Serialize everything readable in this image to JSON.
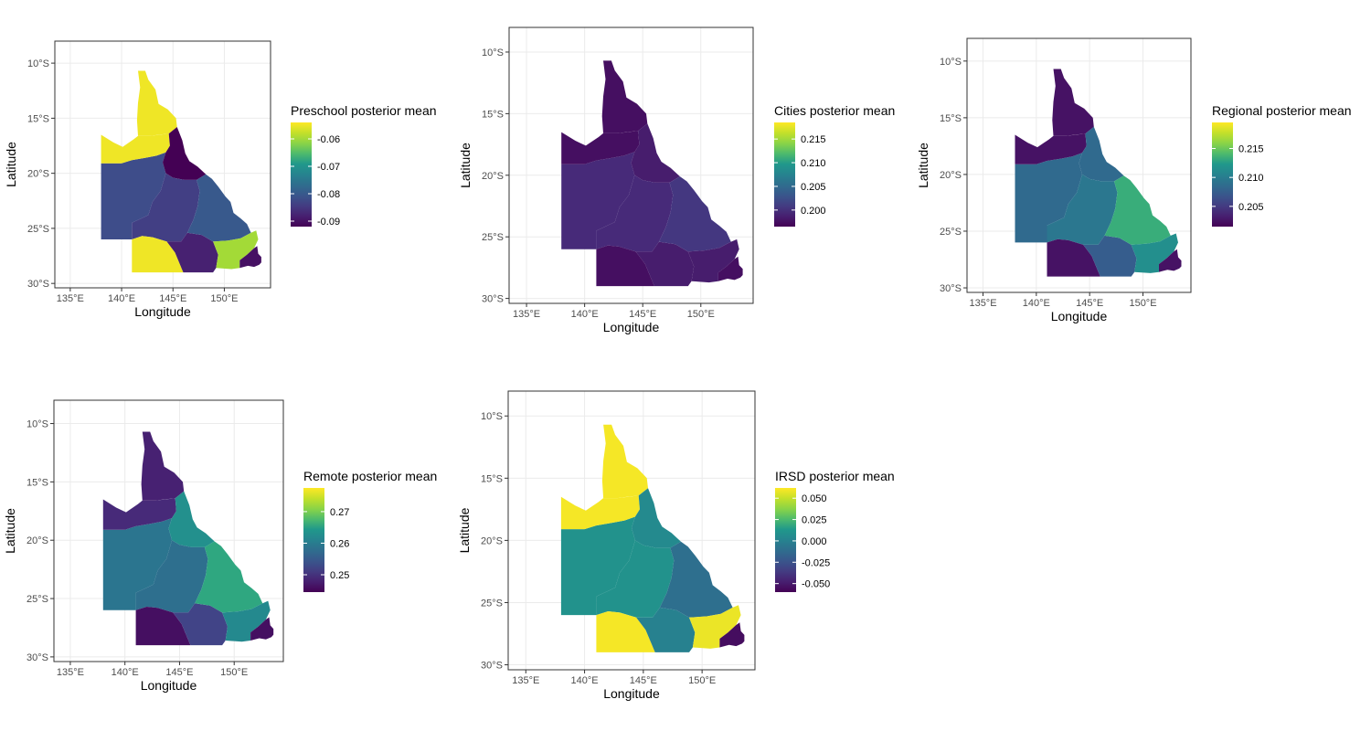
{
  "chart_data": [
    {
      "type": "choropleth",
      "id": "preschool",
      "legend_title": "Preschool posterior mean",
      "legend_breaks": [
        -0.06,
        -0.07,
        -0.08,
        -0.09
      ],
      "legend_labels": [
        "-0.06",
        "-0.07",
        "-0.08",
        "-0.09"
      ],
      "legend_range": [
        -0.092,
        -0.054
      ],
      "xlabel": "Longitude",
      "ylabel": "Latitude",
      "x_ticks": [
        "135°E",
        "140°E",
        "145°E",
        "150°E"
      ],
      "y_ticks": [
        "10°S",
        "15°S",
        "20°S",
        "25°S",
        "30°S"
      ],
      "regions": {
        "cape": -0.055,
        "gulf": -0.055,
        "central_north": -0.092,
        "west": -0.082,
        "central": -0.084,
        "southwest": -0.055,
        "south": -0.088,
        "east_coast": -0.08,
        "southeast": -0.06,
        "brisbane": -0.09
      }
    },
    {
      "type": "choropleth",
      "id": "cities",
      "legend_title": "Cities posterior mean",
      "legend_breaks": [
        0.215,
        0.21,
        0.205,
        0.2
      ],
      "legend_labels": [
        "0.215",
        "0.210",
        "0.205",
        "0.200"
      ],
      "legend_range": [
        0.1965,
        0.2185
      ],
      "xlabel": "Longitude",
      "ylabel": "Latitude",
      "x_ticks": [
        "135°E",
        "140°E",
        "145°E",
        "150°E"
      ],
      "y_ticks": [
        "10°S",
        "15°S",
        "20°S",
        "25°S",
        "30°S"
      ],
      "regions": {
        "cape": 0.1975,
        "gulf": 0.1975,
        "central_north": 0.1985,
        "west": 0.1995,
        "central": 0.1995,
        "southwest": 0.1975,
        "south": 0.1985,
        "east_coast": 0.2005,
        "southeast": 0.1985,
        "brisbane": 0.1975
      }
    },
    {
      "type": "choropleth",
      "id": "regional",
      "legend_title": "Regional posterior mean",
      "legend_breaks": [
        0.215,
        0.21,
        0.205
      ],
      "legend_labels": [
        "0.215",
        "0.210",
        "0.205"
      ],
      "legend_range": [
        0.2015,
        0.2195
      ],
      "xlabel": "Longitude",
      "ylabel": "Latitude",
      "x_ticks": [
        "135°E",
        "140°E",
        "145°E",
        "150°E"
      ],
      "y_ticks": [
        "10°S",
        "15°S",
        "20°S",
        "25°S",
        "30°S"
      ],
      "regions": {
        "cape": 0.2025,
        "gulf": 0.2025,
        "central_north": 0.2085,
        "west": 0.2085,
        "central": 0.2095,
        "southwest": 0.2025,
        "south": 0.2075,
        "east_coast": 0.2135,
        "southeast": 0.2115,
        "brisbane": 0.2025
      }
    },
    {
      "type": "choropleth",
      "id": "remote",
      "legend_title": "Remote posterior mean",
      "legend_breaks": [
        0.27,
        0.26,
        0.25
      ],
      "legend_labels": [
        "0.27",
        "0.26",
        "0.25"
      ],
      "legend_range": [
        0.2445,
        0.2775
      ],
      "xlabel": "Longitude",
      "ylabel": "Latitude",
      "x_ticks": [
        "135°E",
        "140°E",
        "145°E",
        "150°E"
      ],
      "y_ticks": [
        "10°S",
        "15°S",
        "20°S",
        "25°S",
        "30°S"
      ],
      "regions": {
        "cape": 0.248,
        "gulf": 0.249,
        "central_north": 0.263,
        "west": 0.259,
        "central": 0.258,
        "southwest": 0.246,
        "south": 0.252,
        "east_coast": 0.266,
        "southeast": 0.262,
        "brisbane": 0.246
      }
    },
    {
      "type": "choropleth",
      "id": "irsd",
      "legend_title": "IRSD posterior mean",
      "legend_breaks": [
        0.05,
        0.025,
        0.0,
        -0.025,
        -0.05
      ],
      "legend_labels": [
        "0.050",
        "0.025",
        "0.000",
        "-0.025",
        "-0.050"
      ],
      "legend_range": [
        -0.06,
        0.062
      ],
      "xlabel": "Longitude",
      "ylabel": "Latitude",
      "x_ticks": [
        "135°E",
        "140°E",
        "145°E",
        "150°E"
      ],
      "y_ticks": [
        "10°S",
        "15°S",
        "20°S",
        "25°S",
        "30°S"
      ],
      "regions": {
        "cape": 0.06,
        "gulf": 0.06,
        "central_north": 0.005,
        "west": 0.01,
        "central": 0.01,
        "southwest": 0.06,
        "south": 0.0,
        "east_coast": -0.01,
        "southeast": 0.058,
        "brisbane": -0.055
      }
    }
  ]
}
